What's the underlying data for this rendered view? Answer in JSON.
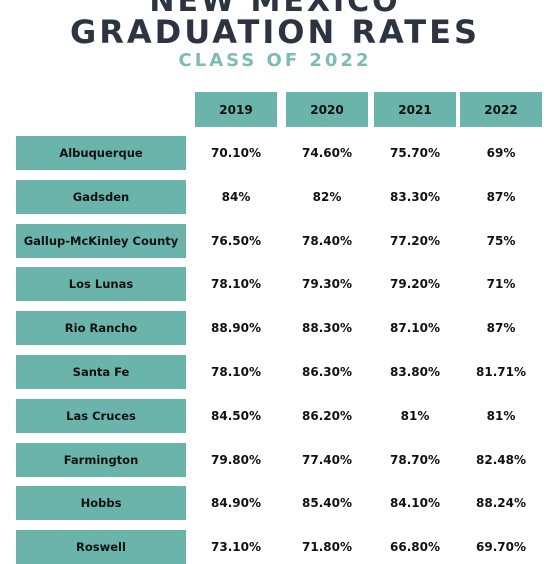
{
  "header": {
    "title_line1": "NEW MEXICO",
    "title_line2": "GRADUATION RATES",
    "subtitle": "CLASS OF 2022"
  },
  "colors": {
    "teal": "#6ab4ab",
    "title": "#2b3440",
    "subtitle": "#7dbcb4"
  },
  "chart_data": {
    "type": "table",
    "title": "NEW MEXICO GRADUATION RATES",
    "subtitle": "CLASS OF 2022",
    "columns": [
      "2019",
      "2020",
      "2021",
      "2022"
    ],
    "rows": [
      {
        "name": "Albuquerque",
        "values": [
          "70.10%",
          "74.60%",
          "75.70%",
          "69%"
        ]
      },
      {
        "name": "Gadsden",
        "values": [
          "84%",
          "82%",
          "83.30%",
          "87%"
        ]
      },
      {
        "name": "Gallup-McKinley County",
        "values": [
          "76.50%",
          "78.40%",
          "77.20%",
          "75%"
        ]
      },
      {
        "name": "Los Lunas",
        "values": [
          "78.10%",
          "79.30%",
          "79.20%",
          "71%"
        ]
      },
      {
        "name": "Rio Rancho",
        "values": [
          "88.90%",
          "88.30%",
          "87.10%",
          "87%"
        ]
      },
      {
        "name": "Santa Fe",
        "values": [
          "78.10%",
          "86.30%",
          "83.80%",
          "81.71%"
        ]
      },
      {
        "name": "Las Cruces",
        "values": [
          "84.50%",
          "86.20%",
          "81%",
          "81%"
        ]
      },
      {
        "name": "Farmington",
        "values": [
          "79.80%",
          "77.40%",
          "78.70%",
          "82.48%"
        ]
      },
      {
        "name": "Hobbs",
        "values": [
          "84.90%",
          "85.40%",
          "84.10%",
          "88.24%"
        ]
      },
      {
        "name": "Roswell",
        "values": [
          "73.10%",
          "71.80%",
          "66.80%",
          "69.70%"
        ]
      }
    ]
  }
}
